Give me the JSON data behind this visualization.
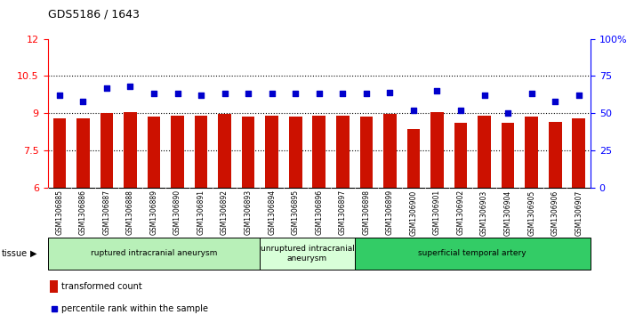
{
  "title": "GDS5186 / 1643",
  "samples": [
    "GSM1306885",
    "GSM1306886",
    "GSM1306887",
    "GSM1306888",
    "GSM1306889",
    "GSM1306890",
    "GSM1306891",
    "GSM1306892",
    "GSM1306893",
    "GSM1306894",
    "GSM1306895",
    "GSM1306896",
    "GSM1306897",
    "GSM1306898",
    "GSM1306899",
    "GSM1306900",
    "GSM1306901",
    "GSM1306902",
    "GSM1306903",
    "GSM1306904",
    "GSM1306905",
    "GSM1306906",
    "GSM1306907"
  ],
  "bar_values": [
    8.8,
    8.8,
    9.0,
    9.05,
    8.85,
    8.88,
    8.88,
    8.95,
    8.85,
    8.9,
    8.85,
    8.88,
    8.88,
    8.85,
    8.95,
    8.35,
    9.02,
    8.6,
    8.9,
    8.6,
    8.85,
    8.65,
    8.8
  ],
  "dot_values_pct": [
    62,
    58,
    67,
    68,
    63,
    63,
    62,
    63,
    63,
    63,
    63,
    63,
    63,
    63,
    64,
    52,
    65,
    52,
    62,
    50,
    63,
    58,
    62
  ],
  "ylim_left": [
    6,
    12
  ],
  "ylim_right": [
    0,
    100
  ],
  "yticks_left": [
    6,
    7.5,
    9,
    10.5,
    12
  ],
  "yticks_right": [
    0,
    25,
    50,
    75,
    100
  ],
  "bar_color": "#CC1100",
  "dot_color": "#0000CC",
  "groups": [
    {
      "label": "ruptured intracranial aneurysm",
      "start": 0,
      "end": 9,
      "color": "#b8f0b8"
    },
    {
      "label": "unruptured intracranial\naneurysm",
      "start": 9,
      "end": 13,
      "color": "#d8ffd8"
    },
    {
      "label": "superficial temporal artery",
      "start": 13,
      "end": 23,
      "color": "#22cc55"
    }
  ],
  "legend_bar_label": "transformed count",
  "legend_dot_label": "percentile rank within the sample",
  "tissue_label": "tissue"
}
